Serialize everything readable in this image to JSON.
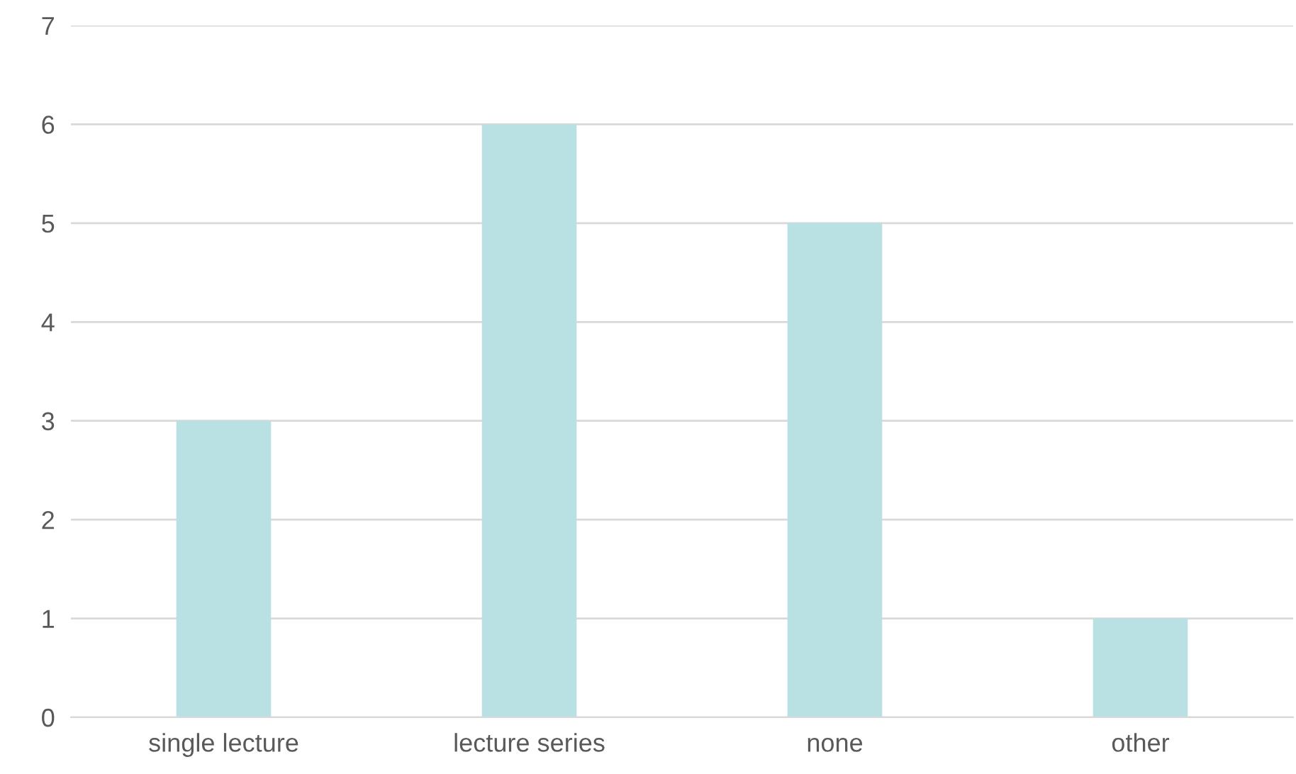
{
  "chart_data": {
    "type": "bar",
    "categories": [
      "single lecture",
      "lecture series",
      "none",
      "other"
    ],
    "values": [
      3,
      6,
      5,
      1
    ],
    "color": "#b9e0e3",
    "ylim": [
      0,
      7
    ],
    "yticks": [
      0,
      1,
      2,
      3,
      4,
      5,
      6,
      7
    ],
    "grid": "y"
  }
}
